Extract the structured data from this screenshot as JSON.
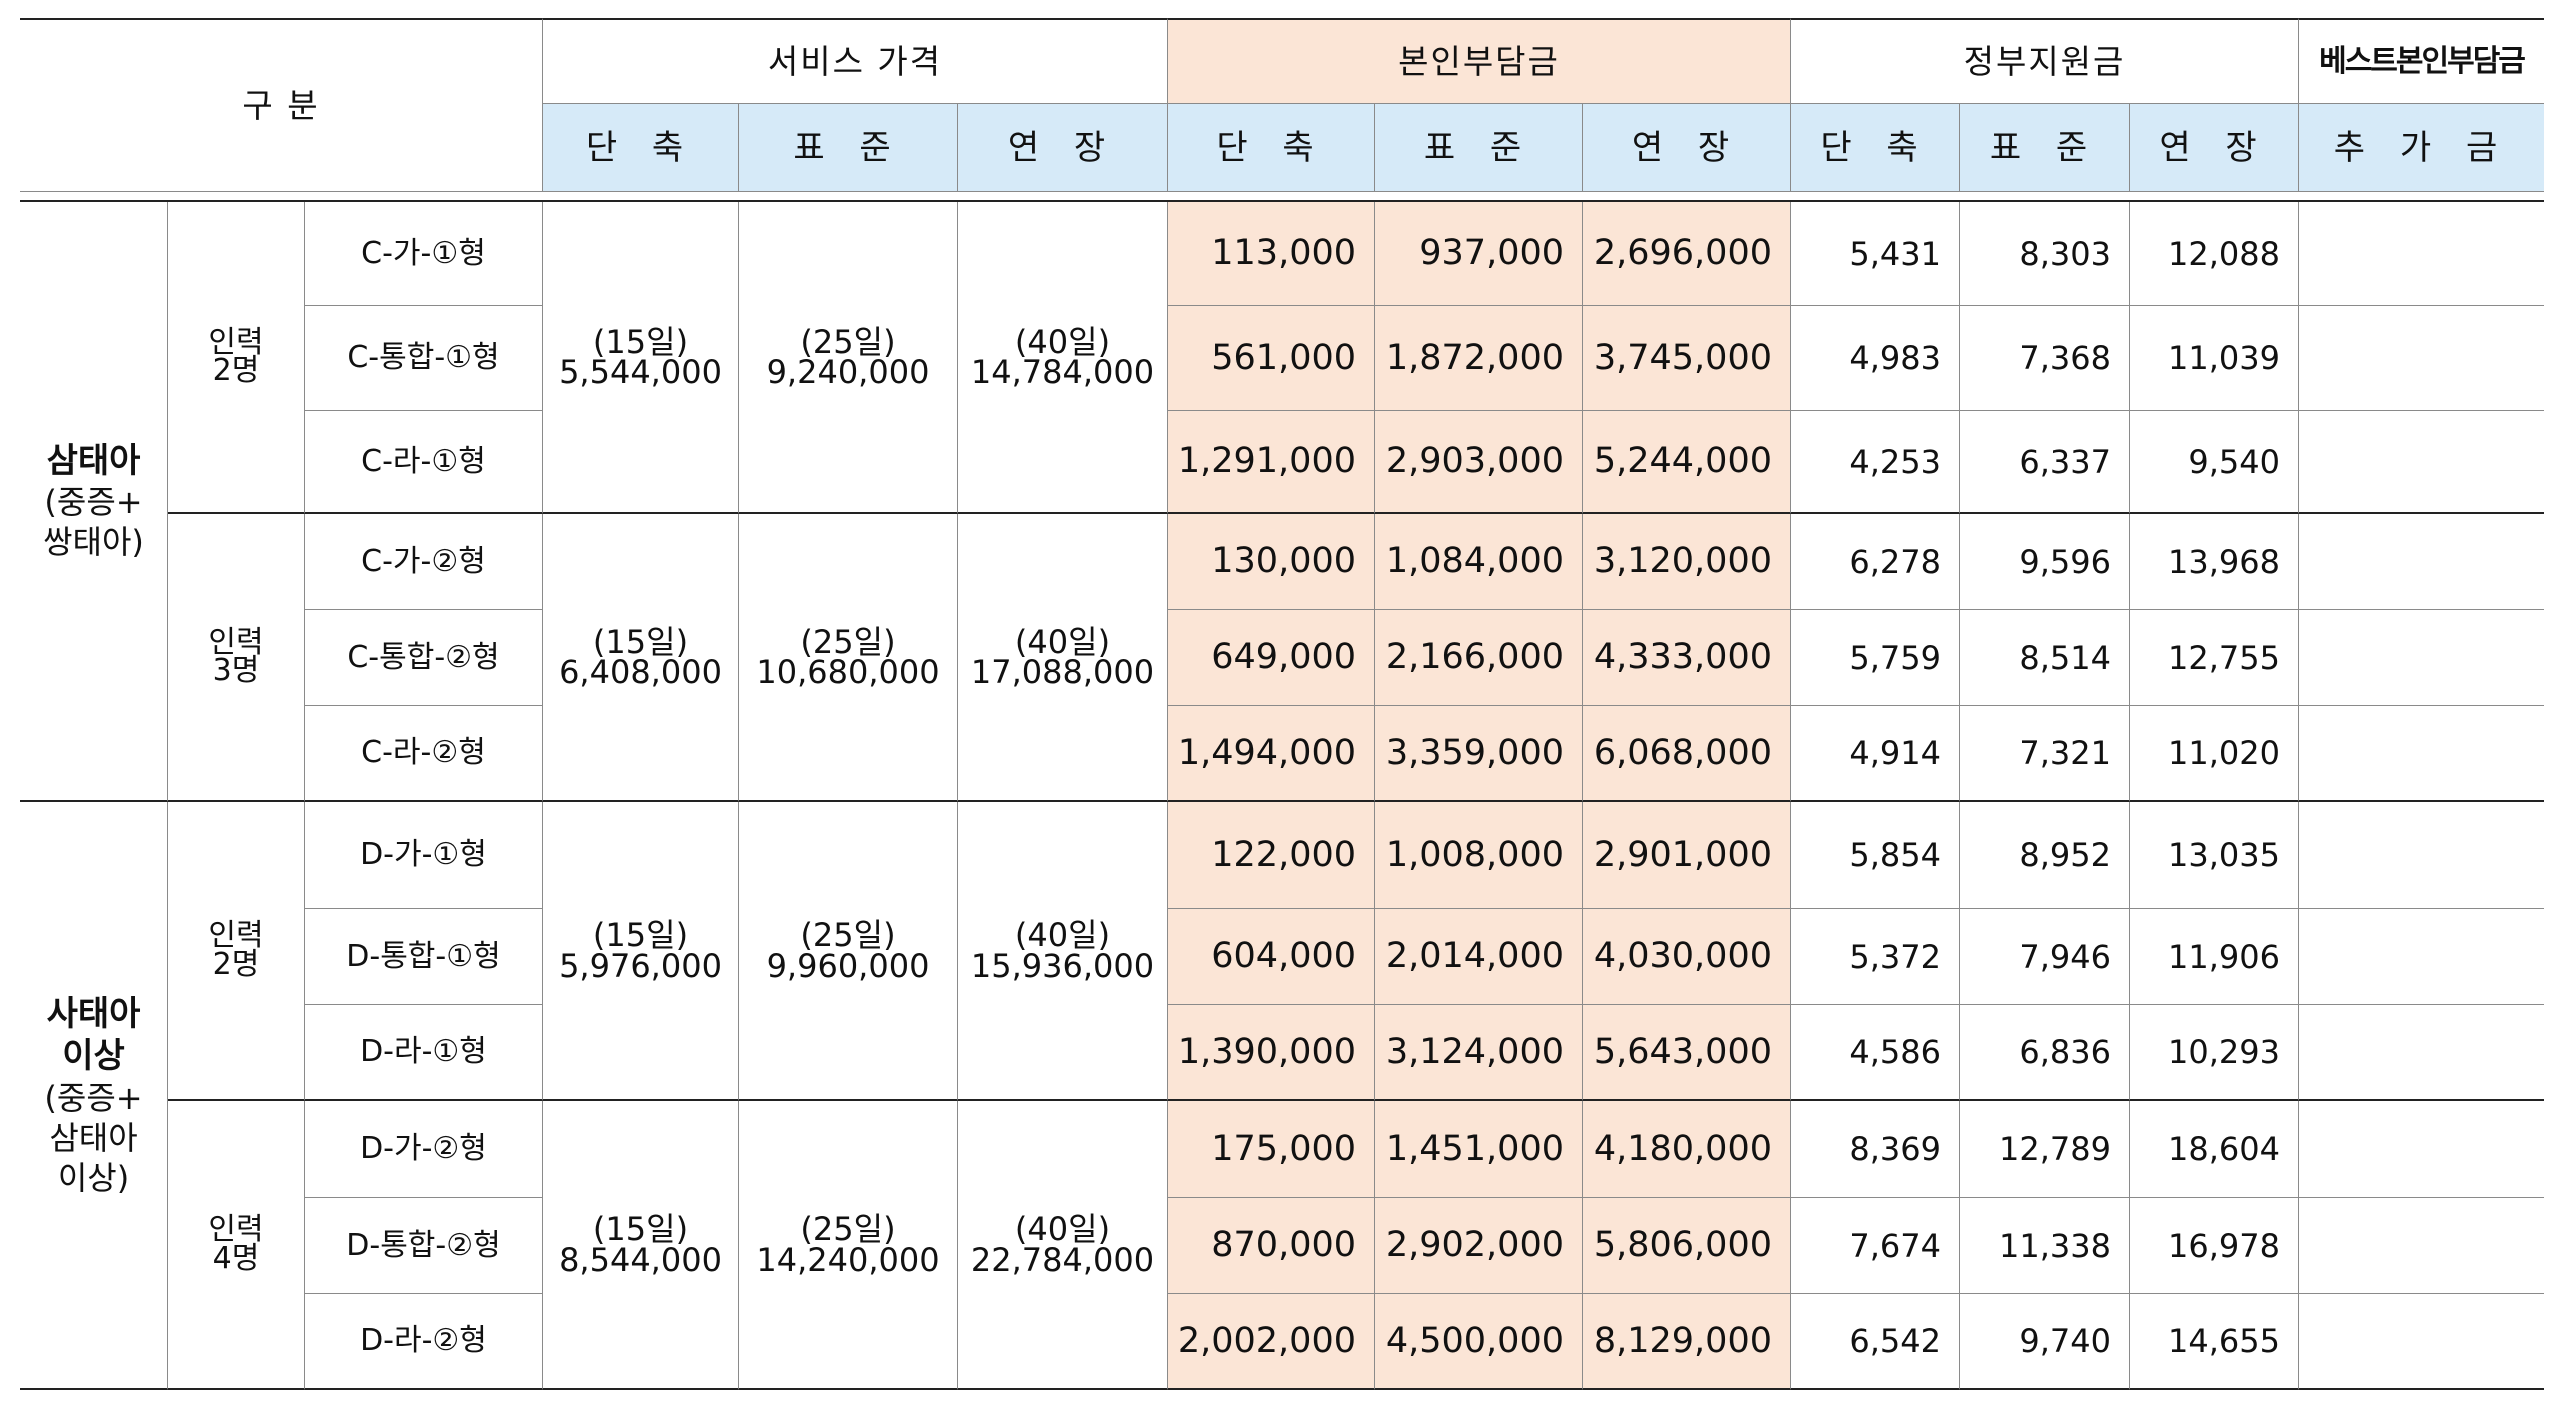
{
  "header": {
    "category": "구 분",
    "service_price": "서비스 가격",
    "self_pay": "본인부담금",
    "gov_support": "정부지원금",
    "best_self_pay": "베스트본인부담금",
    "short": "단 축",
    "standard": "표 준",
    "extended": "연 장",
    "extra": "추 가 금"
  },
  "groups": [
    {
      "main": "삼태아",
      "sub": "(중증+\n쌍태아)"
    },
    {
      "main": "사태아\n이상",
      "sub": "(중증+\n삼태아\n이상)"
    }
  ],
  "staff_blocks": [
    {
      "staff": "인력\n2명",
      "price_short": "(15일)\n5,544,000",
      "price_standard": "(25일)\n9,240,000",
      "price_extended": "(40일)\n14,784,000"
    },
    {
      "staff": "인력\n3명",
      "price_short": "(15일)\n6,408,000",
      "price_standard": "(25일)\n10,680,000",
      "price_extended": "(40일)\n17,088,000"
    },
    {
      "staff": "인력\n2명",
      "price_short": "(15일)\n5,976,000",
      "price_standard": "(25일)\n9,960,000",
      "price_extended": "(40일)\n15,936,000"
    },
    {
      "staff": "인력\n4명",
      "price_short": "(15일)\n8,544,000",
      "price_standard": "(25일)\n14,240,000",
      "price_extended": "(40일)\n22,784,000"
    }
  ],
  "rows": [
    {
      "type": "C-가-①형",
      "self_short": "113,000",
      "self_standard": "937,000",
      "self_extended": "2,696,000",
      "gov_short": "5,431",
      "gov_standard": "8,303",
      "gov_extended": "12,088",
      "extra": ""
    },
    {
      "type": "C-통합-①형",
      "self_short": "561,000",
      "self_standard": "1,872,000",
      "self_extended": "3,745,000",
      "gov_short": "4,983",
      "gov_standard": "7,368",
      "gov_extended": "11,039",
      "extra": ""
    },
    {
      "type": "C-라-①형",
      "self_short": "1,291,000",
      "self_standard": "2,903,000",
      "self_extended": "5,244,000",
      "gov_short": "4,253",
      "gov_standard": "6,337",
      "gov_extended": "9,540",
      "extra": ""
    },
    {
      "type": "C-가-②형",
      "self_short": "130,000",
      "self_standard": "1,084,000",
      "self_extended": "3,120,000",
      "gov_short": "6,278",
      "gov_standard": "9,596",
      "gov_extended": "13,968",
      "extra": ""
    },
    {
      "type": "C-통합-②형",
      "self_short": "649,000",
      "self_standard": "2,166,000",
      "self_extended": "4,333,000",
      "gov_short": "5,759",
      "gov_standard": "8,514",
      "gov_extended": "12,755",
      "extra": ""
    },
    {
      "type": "C-라-②형",
      "self_short": "1,494,000",
      "self_standard": "3,359,000",
      "self_extended": "6,068,000",
      "gov_short": "4,914",
      "gov_standard": "7,321",
      "gov_extended": "11,020",
      "extra": ""
    },
    {
      "type": "D-가-①형",
      "self_short": "122,000",
      "self_standard": "1,008,000",
      "self_extended": "2,901,000",
      "gov_short": "5,854",
      "gov_standard": "8,952",
      "gov_extended": "13,035",
      "extra": ""
    },
    {
      "type": "D-통합-①형",
      "self_short": "604,000",
      "self_standard": "2,014,000",
      "self_extended": "4,030,000",
      "gov_short": "5,372",
      "gov_standard": "7,946",
      "gov_extended": "11,906",
      "extra": ""
    },
    {
      "type": "D-라-①형",
      "self_short": "1,390,000",
      "self_standard": "3,124,000",
      "self_extended": "5,643,000",
      "gov_short": "4,586",
      "gov_standard": "6,836",
      "gov_extended": "10,293",
      "extra": ""
    },
    {
      "type": "D-가-②형",
      "self_short": "175,000",
      "self_standard": "1,451,000",
      "self_extended": "4,180,000",
      "gov_short": "8,369",
      "gov_standard": "12,789",
      "gov_extended": "18,604",
      "extra": ""
    },
    {
      "type": "D-통합-②형",
      "self_short": "870,000",
      "self_standard": "2,902,000",
      "self_extended": "5,806,000",
      "gov_short": "7,674",
      "gov_standard": "11,338",
      "gov_extended": "16,978",
      "extra": ""
    },
    {
      "type": "D-라-②형",
      "self_short": "2,002,000",
      "self_standard": "4,500,000",
      "self_extended": "8,129,000",
      "gov_short": "6,542",
      "gov_standard": "9,740",
      "gov_extended": "14,655",
      "extra": ""
    }
  ],
  "colors": {
    "self_pay_fill": "#fbe5d6",
    "subheader_fill": "#d6eaf8",
    "rule": "#222222"
  }
}
